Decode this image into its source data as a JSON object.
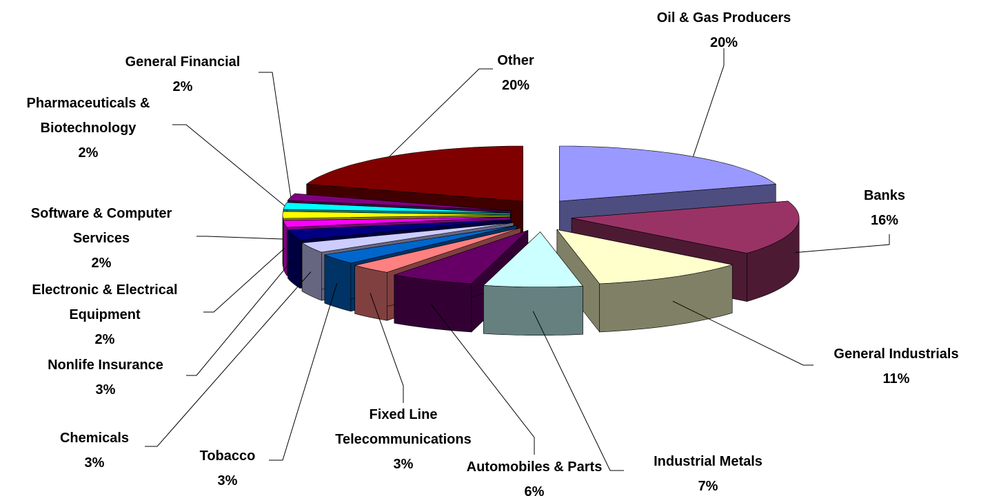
{
  "chart_data": {
    "type": "pie3d",
    "categories": [
      "Oil & Gas Producers",
      "Banks",
      "General Industrials",
      "Industrial Metals",
      "Automobiles & Parts",
      "Fixed Line Telecommunications",
      "Tobacco",
      "Chemicals",
      "Nonlife Insurance",
      "Electronic & Electrical Equipment",
      "Software & Computer Services",
      "Pharmaceuticals & Biotechnology",
      "General Financial",
      "Other"
    ],
    "values": [
      20,
      16,
      11,
      7,
      6,
      3,
      3,
      3,
      3,
      2,
      2,
      2,
      2,
      20
    ],
    "value_labels": [
      "20%",
      "16%",
      "11%",
      "7%",
      "6%",
      "3%",
      "3%",
      "3%",
      "3%",
      "2%",
      "2%",
      "2%",
      "2%",
      "20%"
    ],
    "colors": [
      "#9999ff",
      "#993366",
      "#ffffcc",
      "#ccffff",
      "#660066",
      "#ff8080",
      "#0066cc",
      "#ccccff",
      "#000080",
      "#ff00ff",
      "#ffff00",
      "#00ffff",
      "#800080",
      "#800000"
    ]
  }
}
